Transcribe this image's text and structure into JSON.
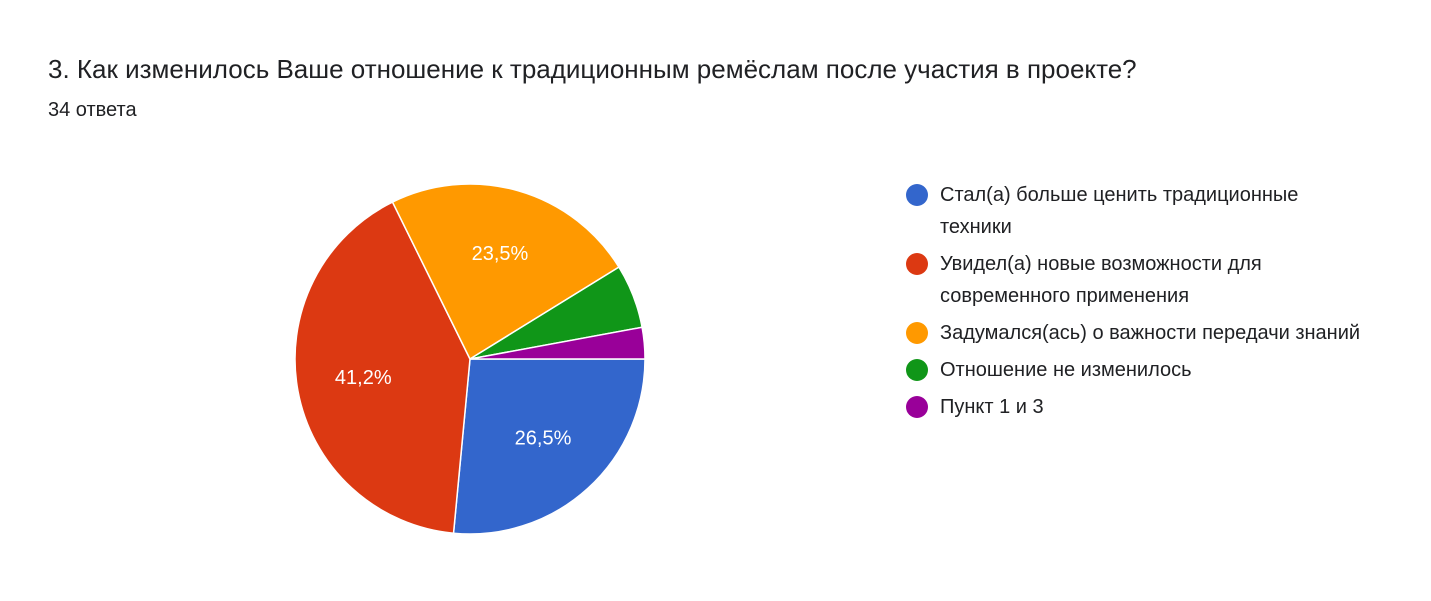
{
  "chart_data": {
    "type": "pie",
    "title": "3. Как изменилось Ваше отношение к традиционным ремёслам после участия в проекте?",
    "subtitle": "34 ответа",
    "categories": [
      "Стал(а) больше ценить традиционные техники",
      "Увидел(а) новые возможности для современного применения",
      "Задумался(ась) о важности передачи знаний",
      "Отношение не изменилось",
      "Пункт 1 и 3"
    ],
    "values": [
      26.5,
      41.2,
      23.5,
      5.9,
      2.9
    ],
    "value_labels": [
      "26,5%",
      "41,2%",
      "23,5%",
      null,
      null
    ],
    "colors": [
      "#3366cc",
      "#dc3912",
      "#ff9900",
      "#109618",
      "#990099"
    ],
    "legend": "right"
  }
}
